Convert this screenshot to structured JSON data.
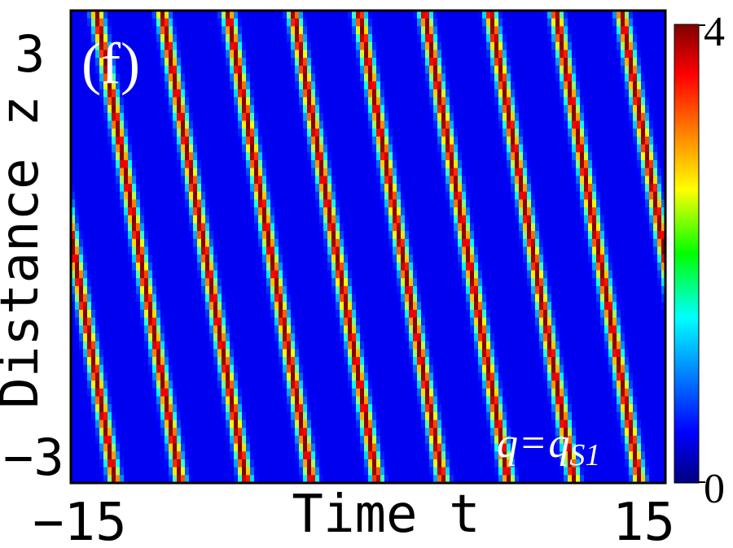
{
  "chart_data": {
    "type": "heatmap",
    "title": "",
    "panel_label": "(f)",
    "xlabel": "Time t",
    "ylabel": "Distance z",
    "xlim": [
      -15,
      15
    ],
    "ylim": [
      -3,
      3
    ],
    "x_ticks": [
      "−15",
      "15"
    ],
    "y_ticks": [
      "3",
      "−3"
    ],
    "colorbar": {
      "range": [
        0,
        4
      ],
      "ticks": [
        "4",
        "0"
      ],
      "colormap": "jet"
    },
    "annotation": {
      "q": "q",
      "eq": "=",
      "base": "q",
      "sub": "S1"
    },
    "field": {
      "pattern": "periodic stripes (tilted)",
      "stripe_period_t": 3.31,
      "drift_dt_dz": -0.71,
      "peak_value": 4,
      "background_value": 0
    },
    "colors": {
      "background": "#ffffff",
      "axes": "#000000",
      "panel_text": "#ffffff"
    }
  }
}
